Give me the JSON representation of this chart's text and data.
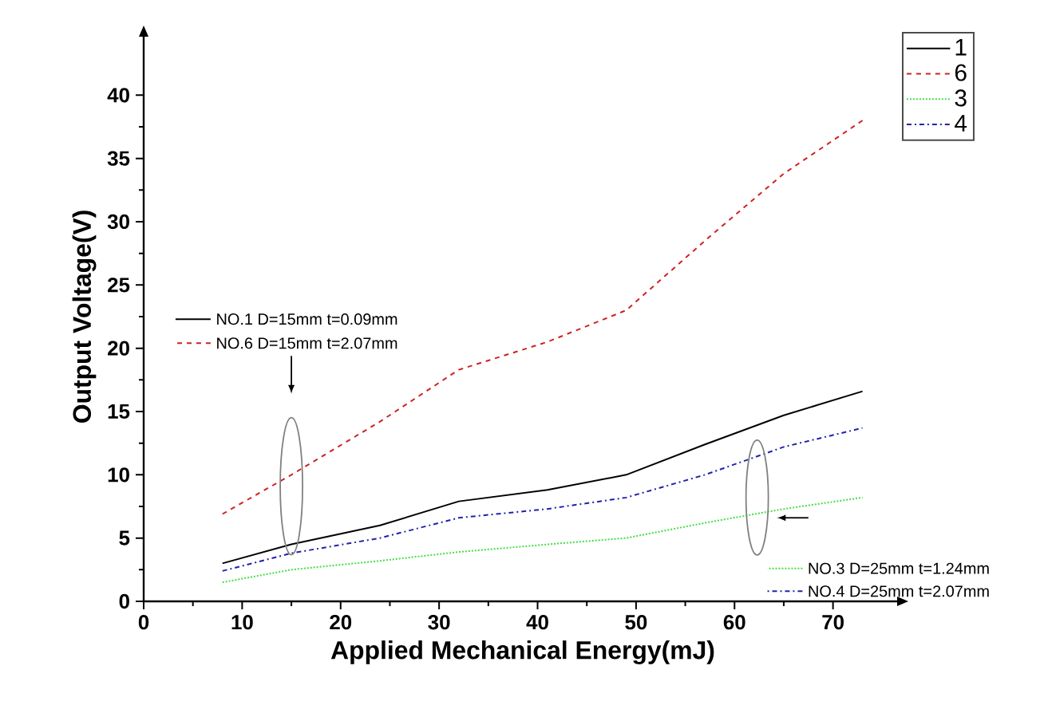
{
  "chart_data": {
    "type": "line",
    "xlabel": "Applied Mechanical Energy(mJ)",
    "ylabel": "Output Voltage(V)",
    "x": [
      8,
      15,
      24,
      32,
      41,
      49,
      57,
      65,
      73
    ],
    "series": [
      {
        "name": "1",
        "color": "#000000",
        "line_style": "solid",
        "values": [
          3.0,
          4.5,
          6.0,
          7.9,
          8.8,
          10.0,
          12.4,
          14.7,
          16.6
        ]
      },
      {
        "name": "6",
        "color": "#cc2222",
        "line_style": "dashed",
        "values": [
          6.9,
          10.0,
          14.2,
          18.3,
          20.5,
          23.0,
          28.5,
          33.8,
          38.0
        ]
      },
      {
        "name": "3",
        "color": "#44dd44",
        "line_style": "dotted",
        "values": [
          1.5,
          2.5,
          3.2,
          3.9,
          4.5,
          5.0,
          6.2,
          7.3,
          8.2
        ]
      },
      {
        "name": "4",
        "color": "#2222aa",
        "line_style": "dashdotted",
        "values": [
          2.4,
          3.8,
          5.0,
          6.6,
          7.3,
          8.2,
          10.0,
          12.2,
          13.7
        ]
      }
    ],
    "xlim": [
      0,
      77
    ],
    "ylim": [
      0,
      45
    ],
    "xticks": [
      0,
      10,
      20,
      30,
      40,
      50,
      60,
      70
    ],
    "yticks": [
      0,
      5,
      10,
      15,
      20,
      25,
      30,
      35,
      40
    ],
    "annotations": [
      "NO.1 D=15mm t=0.09mm",
      "NO.6 D=15mm t=2.07mm",
      "NO.3 D=25mm t=1.24mm",
      "NO.4 D=25mm t=2.07mm"
    ],
    "legend": "top right",
    "marker": "none",
    "grid": false
  }
}
